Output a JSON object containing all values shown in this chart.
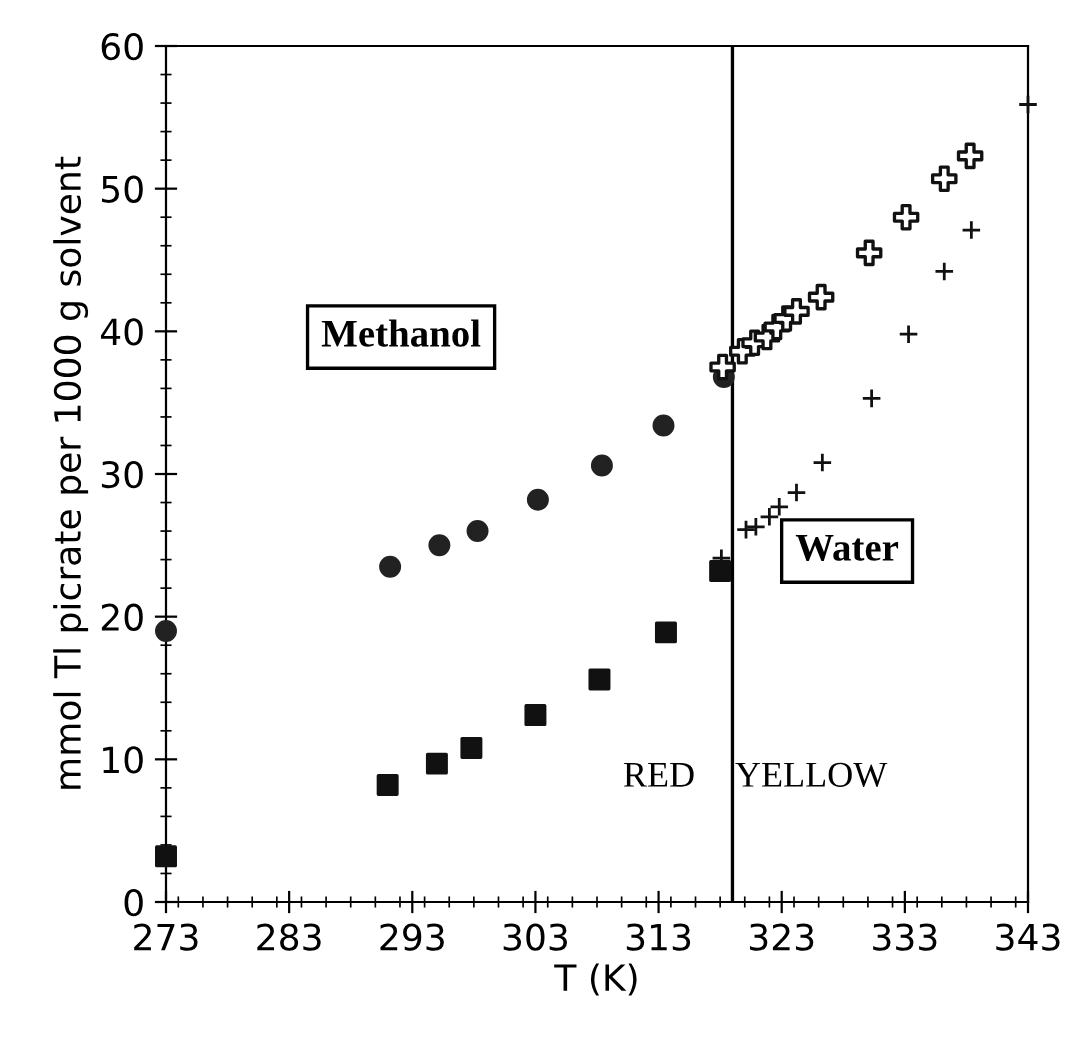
{
  "chart_data": {
    "type": "scatter",
    "xlabel": "T (K)",
    "ylabel": "mmol Tl picrate per 1000 g solvent",
    "xlim": [
      273,
      343
    ],
    "xticks": [
      273,
      283,
      293,
      303,
      313,
      323,
      333,
      343
    ],
    "ylim": [
      0,
      60
    ],
    "yticks": [
      0,
      10,
      20,
      30,
      40,
      50,
      60
    ],
    "grid": false,
    "series": [
      {
        "color": "#222222",
        "marker": "circle",
        "x": [
          273,
          291.2,
          295.2,
          298.3,
          303.2,
          308.4,
          313.4,
          318.3
        ],
        "values": [
          19,
          23.5,
          25,
          26,
          28.2,
          30.6,
          33.4,
          36.8
        ]
      },
      {
        "color": "#111111",
        "marker": "cross",
        "x": [
          318.2,
          319.8,
          320.8,
          321.8,
          322.6,
          323.4,
          324.2,
          326.2,
          330.1,
          333.1,
          336.2,
          338.3
        ],
        "values": [
          37.5,
          38.6,
          39.2,
          39.6,
          40.3,
          40.9,
          41.4,
          42.4,
          45.5,
          48.0,
          50.7,
          52.3
        ]
      },
      {
        "color": "#111111",
        "marker": "square",
        "x": [
          273,
          291.0,
          295.0,
          297.8,
          303.0,
          308.2,
          313.6,
          318.0
        ],
        "values": [
          3.2,
          8.2,
          9.7,
          10.8,
          13.1,
          15.6,
          18.9,
          23.2
        ]
      },
      {
        "color": "#111111",
        "marker": "cross",
        "x": [
          318.1,
          320.1,
          320.9,
          322.0,
          322.8,
          324.2,
          326.3,
          330.3,
          333.3,
          336.2,
          338.4,
          343
        ],
        "values": [
          24.1,
          26.1,
          26.3,
          27.0,
          27.7,
          28.7,
          30.8,
          35.3,
          39.8,
          44.2,
          47.1,
          55.9
        ]
      }
    ],
    "ref_lines": [
      {
        "axis": "x",
        "value": 319,
        "color": "#000000",
        "line_style": "solid"
      }
    ],
    "annotations": [
      "Methanol",
      "Water",
      "RED",
      "YELLOW"
    ]
  }
}
